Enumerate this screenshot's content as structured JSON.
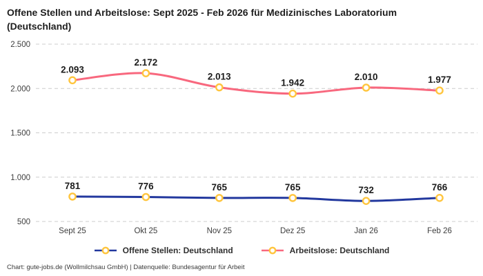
{
  "title": "Offene Stellen und Arbeitslose: Sept 2025 - Feb 2026 für Medizinisches Laboratorium (Deutschland)",
  "footer": "Chart: gute-jobs.de (Wollmilchsau GmbH) | Datenquelle: Bundesagentur für Arbeit",
  "colors": {
    "offene_stellen": "#22389e",
    "arbeitslose": "#f8687e",
    "marker_stroke": "#ffc53d",
    "marker_fill": "#ffffff",
    "grid": "#cccccc",
    "tick_text": "#3d3d3d",
    "data_label": "#1c1c1c"
  },
  "chart_data": {
    "type": "line",
    "title": "Offene Stellen und Arbeitslose: Sept 2025 - Feb 2026 für Medizinisches Laboratorium (Deutschland)",
    "categories": [
      "Sept 25",
      "Okt 25",
      "Nov 25",
      "Dez 25",
      "Jan 26",
      "Feb 26"
    ],
    "series": [
      {
        "name": "Offene Stellen: Deutschland",
        "color_key": "offene_stellen",
        "values": [
          781,
          776,
          765,
          765,
          732,
          766
        ],
        "labels": [
          "781",
          "776",
          "765",
          "765",
          "732",
          "766"
        ]
      },
      {
        "name": "Arbeitslose: Deutschland",
        "color_key": "arbeitslose",
        "values": [
          2093,
          2172,
          2013,
          1942,
          2010,
          1977
        ],
        "labels": [
          "2.093",
          "2.172",
          "2.013",
          "1.942",
          "2.010",
          "1.977"
        ]
      }
    ],
    "ylim": [
      500,
      2500
    ],
    "y_ticks": [
      500,
      1000,
      1500,
      2000,
      2500
    ],
    "y_tick_labels": [
      "500",
      "1.000",
      "1.500",
      "2.000",
      "2.500"
    ],
    "xlabel": "",
    "ylabel": "",
    "grid": true,
    "grid_style": "dashed",
    "legend_position": "bottom"
  }
}
